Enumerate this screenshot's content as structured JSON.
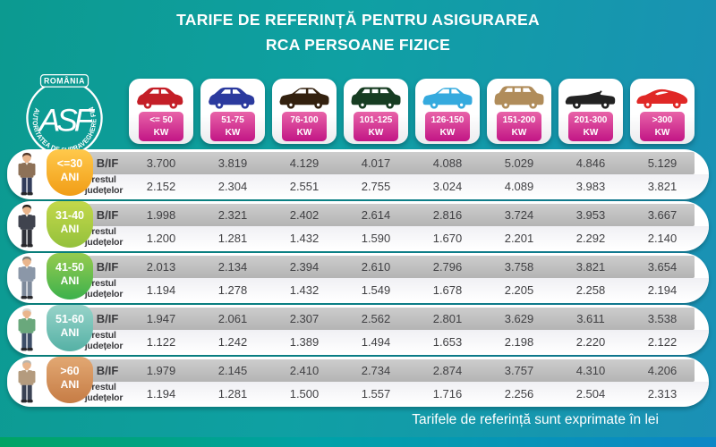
{
  "title": {
    "line1": "TARIFE DE REFERINȚĂ PENTRU ASIGURAREA",
    "line2": "RCA PERSOANE FIZICE"
  },
  "logo": {
    "country": "ROMÂNIA",
    "acronym": "ASF",
    "ring_text": "AUTORITATEA DE SUPRAVEGHERE FINANCIARĂ"
  },
  "footer": {
    "note": "Tarifele de referință sunt exprimate în lei"
  },
  "colors": {
    "background_left": "#0c9a90",
    "background_mid": "#0fa0a3",
    "background_right": "#1b90b6",
    "kw_badge_top": "#e863a8",
    "kw_badge_bottom": "#c21585",
    "bif_band_top": "#cdcdcd",
    "bif_band_bottom": "#b4b4b4",
    "rest_band": "#f0f0f4",
    "bottom_bar_left": "#00a464",
    "bottom_bar_mid": "#00a2a8",
    "bottom_bar_right": "#0c87c6"
  },
  "row_labels": {
    "bif": "B/IF",
    "rest_line1": "restul",
    "rest_line2": "județelor"
  },
  "columns": [
    {
      "label_top": "<= 50",
      "label_bottom": "KW",
      "icon_name": "red-city-car-icon",
      "icon_variant": "compact",
      "icon_color": "#c41e27"
    },
    {
      "label_top": "51-75",
      "label_bottom": "KW",
      "icon_name": "blue-hatchback-icon",
      "icon_variant": "compact",
      "icon_color": "#2b3a9e"
    },
    {
      "label_top": "76-100",
      "label_bottom": "KW",
      "icon_name": "brown-sedan-icon",
      "icon_variant": "sedan",
      "icon_color": "#33210f"
    },
    {
      "label_top": "101-125",
      "label_bottom": "KW",
      "icon_name": "green-minivan-icon",
      "icon_variant": "wagon",
      "icon_color": "#173d22"
    },
    {
      "label_top": "126-150",
      "label_bottom": "KW",
      "icon_name": "lightblue-sedan-icon",
      "icon_variant": "sedan",
      "icon_color": "#35aade"
    },
    {
      "label_top": "151-200",
      "label_bottom": "KW",
      "icon_name": "tan-suv-icon",
      "icon_variant": "suv",
      "icon_color": "#b08c5a"
    },
    {
      "label_top": "201-300",
      "label_bottom": "KW",
      "icon_name": "black-convertible-icon",
      "icon_variant": "convertible",
      "icon_color": "#222222"
    },
    {
      "label_top": ">300",
      "label_bottom": "KW",
      "icon_name": "red-sports-car-icon",
      "icon_variant": "sports",
      "icon_color": "#e02826"
    }
  ],
  "rows": [
    {
      "age": "<=30",
      "unit": "ANI",
      "persona": "young-man",
      "badge_from": "#ffc94c",
      "badge_to": "#f19d16",
      "hair": "#53382a",
      "coat": "#8d7157",
      "pants": "#323c5a",
      "bif": [
        "3.700",
        "3.819",
        "4.129",
        "4.017",
        "4.088",
        "5.029",
        "4.846",
        "5.129"
      ],
      "rest": [
        "2.152",
        "2.304",
        "2.551",
        "2.755",
        "3.024",
        "4.089",
        "3.983",
        "3.821"
      ]
    },
    {
      "age": "31-40",
      "unit": "ANI",
      "persona": "man-dark-suit",
      "badge_from": "#c3d84a",
      "badge_to": "#94c13c",
      "hair": "#26201c",
      "coat": "#40434e",
      "pants": "#30323a",
      "bif": [
        "1.998",
        "2.321",
        "2.402",
        "2.614",
        "2.816",
        "3.724",
        "3.953",
        "3.667"
      ],
      "rest": [
        "1.200",
        "1.281",
        "1.432",
        "1.590",
        "1.670",
        "2.201",
        "2.292",
        "2.140"
      ]
    },
    {
      "age": "41-50",
      "unit": "ANI",
      "persona": "man-gray-suit",
      "badge_from": "#96cb4f",
      "badge_to": "#3cb14c",
      "hair": "#7e7a72",
      "coat": "#8b97a8",
      "pants": "#7e8a9b",
      "bif": [
        "2.013",
        "2.134",
        "2.394",
        "2.610",
        "2.796",
        "3.758",
        "3.821",
        "3.654"
      ],
      "rest": [
        "1.194",
        "1.278",
        "1.432",
        "1.549",
        "1.678",
        "2.205",
        "2.258",
        "2.194"
      ]
    },
    {
      "age": "51-60",
      "unit": "ANI",
      "persona": "man-green-vest",
      "badge_from": "#97d3c9",
      "badge_to": "#55b1a5",
      "hair": "#d8d8d6",
      "coat": "#6aa87c",
      "pants": "#3e4f69",
      "bif": [
        "1.947",
        "2.061",
        "2.307",
        "2.562",
        "2.801",
        "3.629",
        "3.611",
        "3.538"
      ],
      "rest": [
        "1.122",
        "1.242",
        "1.389",
        "1.494",
        "1.653",
        "2.198",
        "2.220",
        "2.122"
      ]
    },
    {
      "age": ">60",
      "unit": "ANI",
      "persona": "elderly-man",
      "badge_from": "#e2a873",
      "badge_to": "#c67c45",
      "hair": "#b9b4ac",
      "coat": "#b49b7e",
      "pants": "#3a4254",
      "bif": [
        "1.979",
        "2.145",
        "2.410",
        "2.734",
        "2.874",
        "3.757",
        "4.310",
        "4.206"
      ],
      "rest": [
        "1.194",
        "1.281",
        "1.500",
        "1.557",
        "1.716",
        "2.256",
        "2.504",
        "2.313"
      ]
    }
  ],
  "chart_data": {
    "type": "table",
    "title": "TARIFE DE REFERINȚĂ PENTRU ASIGURAREA RCA PERSOANE FIZICE",
    "unit": "lei",
    "note": "Tarifele de referință sunt exprimate în lei",
    "columns": [
      "<= 50 KW",
      "51-75 KW",
      "76-100 KW",
      "101-125 KW",
      "126-150 KW",
      "151-200 KW",
      "201-300 KW",
      ">300 KW"
    ],
    "age_groups": [
      {
        "age": "<=30 ANI",
        "series": [
          {
            "name": "B/IF",
            "values": [
              3700,
              3819,
              4129,
              4017,
              4088,
              5029,
              4846,
              5129
            ]
          },
          {
            "name": "restul județelor",
            "values": [
              2152,
              2304,
              2551,
              2755,
              3024,
              4089,
              3983,
              3821
            ]
          }
        ]
      },
      {
        "age": "31-40 ANI",
        "series": [
          {
            "name": "B/IF",
            "values": [
              1998,
              2321,
              2402,
              2614,
              2816,
              3724,
              3953,
              3667
            ]
          },
          {
            "name": "restul județelor",
            "values": [
              1200,
              1281,
              1432,
              1590,
              1670,
              2201,
              2292,
              2140
            ]
          }
        ]
      },
      {
        "age": "41-50 ANI",
        "series": [
          {
            "name": "B/IF",
            "values": [
              2013,
              2134,
              2394,
              2610,
              2796,
              3758,
              3821,
              3654
            ]
          },
          {
            "name": "restul județelor",
            "values": [
              1194,
              1278,
              1432,
              1549,
              1678,
              2205,
              2258,
              2194
            ]
          }
        ]
      },
      {
        "age": "51-60 ANI",
        "series": [
          {
            "name": "B/IF",
            "values": [
              1947,
              2061,
              2307,
              2562,
              2801,
              3629,
              3611,
              3538
            ]
          },
          {
            "name": "restul județelor",
            "values": [
              1122,
              1242,
              1389,
              1494,
              1653,
              2198,
              2220,
              2122
            ]
          }
        ]
      },
      {
        "age": ">60 ANI",
        "series": [
          {
            "name": "B/IF",
            "values": [
              1979,
              2145,
              2410,
              2734,
              2874,
              3757,
              4310,
              4206
            ]
          },
          {
            "name": "restul județelor",
            "values": [
              1194,
              1281,
              1500,
              1557,
              1716,
              2256,
              2504,
              2313
            ]
          }
        ]
      }
    ]
  }
}
